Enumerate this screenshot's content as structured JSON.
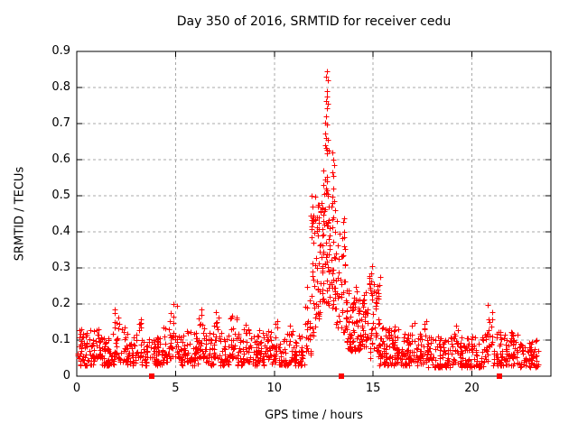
{
  "window": {
    "background": "#ffffff"
  },
  "chart_data": {
    "type": "scatter",
    "title": "Day 350 of 2016, SRMTID for receiver cedu",
    "xlabel": "GPS time / hours",
    "ylabel": "SRMTID / TECUs",
    "xlim": [
      0,
      24
    ],
    "ylim": [
      0,
      0.9
    ],
    "xticks": {
      "values": [
        0,
        5,
        10,
        15,
        20
      ],
      "labels": [
        "0",
        "5",
        "10",
        "15",
        "20"
      ]
    },
    "yticks": {
      "values": [
        0,
        0.1,
        0.2,
        0.3,
        0.4,
        0.5,
        0.6,
        0.7,
        0.8,
        0.9
      ],
      "labels": [
        "0",
        "0.1",
        "0.2",
        "0.3",
        "0.4",
        "0.5",
        "0.6",
        "0.7",
        "0.8",
        "0.9"
      ]
    },
    "grid": {
      "show": true,
      "style": "dashed",
      "color": "#a8a8a8"
    },
    "border_color": "#000000",
    "text_color": "#000000",
    "background": "#ffffff",
    "series": [
      {
        "name": "srmtid",
        "marker": "plus",
        "color": "#ff0000",
        "marker_size_px": 7,
        "representation": "density-envelope",
        "segments_note": "each segment = [hour_start, hour_end, y_min, y_max, point_count], values in TECUs read from gridlines",
        "segments": [
          [
            0.0,
            1.0,
            0.03,
            0.13,
            70
          ],
          [
            1.0,
            1.3,
            0.05,
            0.175,
            24
          ],
          [
            1.3,
            1.9,
            0.03,
            0.12,
            44
          ],
          [
            1.9,
            2.15,
            0.05,
            0.19,
            20
          ],
          [
            2.15,
            2.55,
            0.04,
            0.15,
            26
          ],
          [
            2.55,
            3.0,
            0.03,
            0.11,
            32
          ],
          [
            3.0,
            3.25,
            0.05,
            0.16,
            18
          ],
          [
            3.25,
            4.4,
            0.03,
            0.11,
            80
          ],
          [
            4.4,
            4.62,
            0.04,
            0.14,
            15
          ],
          [
            4.62,
            5.15,
            0.05,
            0.21,
            38
          ],
          [
            5.15,
            5.5,
            0.03,
            0.12,
            24
          ],
          [
            5.5,
            5.78,
            0.04,
            0.15,
            18
          ],
          [
            5.78,
            6.15,
            0.03,
            0.12,
            26
          ],
          [
            6.15,
            6.5,
            0.05,
            0.21,
            28
          ],
          [
            6.5,
            6.9,
            0.03,
            0.12,
            28
          ],
          [
            6.9,
            7.2,
            0.05,
            0.18,
            22
          ],
          [
            7.2,
            7.75,
            0.03,
            0.12,
            38
          ],
          [
            7.75,
            8.1,
            0.05,
            0.17,
            25
          ],
          [
            8.1,
            8.45,
            0.03,
            0.12,
            24
          ],
          [
            8.45,
            8.75,
            0.04,
            0.16,
            20
          ],
          [
            8.75,
            9.15,
            0.03,
            0.12,
            28
          ],
          [
            9.15,
            9.45,
            0.04,
            0.145,
            20
          ],
          [
            9.45,
            9.9,
            0.03,
            0.125,
            30
          ],
          [
            9.9,
            10.2,
            0.04,
            0.155,
            20
          ],
          [
            10.2,
            10.75,
            0.03,
            0.125,
            38
          ],
          [
            10.75,
            11.05,
            0.04,
            0.14,
            20
          ],
          [
            11.05,
            11.55,
            0.03,
            0.12,
            32
          ],
          [
            11.55,
            11.85,
            0.06,
            0.25,
            22
          ],
          [
            11.85,
            12.1,
            0.1,
            0.5,
            28
          ],
          [
            12.1,
            12.35,
            0.15,
            0.48,
            28
          ],
          [
            12.35,
            12.75,
            0.2,
            0.56,
            52
          ],
          [
            12.75,
            13.1,
            0.18,
            0.5,
            42
          ],
          [
            13.1,
            13.6,
            0.12,
            0.45,
            38
          ],
          [
            13.6,
            14.4,
            0.07,
            0.25,
            85
          ],
          [
            14.4,
            14.75,
            0.08,
            0.24,
            35
          ],
          [
            14.75,
            15.3,
            0.05,
            0.28,
            48
          ],
          [
            15.3,
            15.85,
            0.03,
            0.15,
            52
          ],
          [
            15.85,
            16.3,
            0.03,
            0.14,
            40
          ],
          [
            16.3,
            16.85,
            0.03,
            0.12,
            42
          ],
          [
            16.85,
            17.15,
            0.04,
            0.155,
            20
          ],
          [
            17.15,
            17.5,
            0.03,
            0.12,
            25
          ],
          [
            17.5,
            17.75,
            0.04,
            0.165,
            18
          ],
          [
            17.75,
            19.05,
            0.025,
            0.11,
            85
          ],
          [
            19.05,
            19.3,
            0.04,
            0.14,
            18
          ],
          [
            19.3,
            20.6,
            0.025,
            0.11,
            85
          ],
          [
            20.6,
            20.8,
            0.04,
            0.13,
            15
          ],
          [
            20.8,
            21.05,
            0.08,
            0.2,
            18
          ],
          [
            21.05,
            21.7,
            0.03,
            0.125,
            40
          ],
          [
            21.7,
            22.05,
            0.03,
            0.13,
            24
          ],
          [
            22.05,
            22.45,
            0.03,
            0.12,
            26
          ],
          [
            22.45,
            23.4,
            0.025,
            0.1,
            58
          ]
        ],
        "peak_points": [
          [
            12.68,
            0.845
          ],
          [
            12.62,
            0.831
          ],
          [
            12.7,
            0.82
          ],
          [
            12.65,
            0.791
          ],
          [
            12.67,
            0.776
          ],
          [
            12.6,
            0.762
          ],
          [
            12.71,
            0.756
          ],
          [
            12.64,
            0.742
          ],
          [
            12.63,
            0.721
          ],
          [
            12.59,
            0.703
          ],
          [
            12.68,
            0.697
          ],
          [
            12.55,
            0.672
          ],
          [
            12.63,
            0.661
          ],
          [
            12.7,
            0.655
          ],
          [
            12.58,
            0.641
          ],
          [
            12.6,
            0.633
          ],
          [
            12.66,
            0.628
          ],
          [
            12.74,
            0.624
          ],
          [
            12.65,
            0.617
          ],
          [
            12.95,
            0.621
          ],
          [
            13.0,
            0.601
          ],
          [
            13.04,
            0.586
          ],
          [
            12.92,
            0.566
          ],
          [
            12.98,
            0.556
          ],
          [
            12.5,
            0.571
          ],
          [
            12.55,
            0.546
          ],
          [
            12.48,
            0.531
          ],
          [
            12.6,
            0.521
          ],
          [
            12.66,
            0.514
          ],
          [
            12.52,
            0.506
          ],
          [
            12.7,
            0.501
          ],
          [
            13.0,
            0.519
          ],
          [
            12.4,
            0.481
          ],
          [
            12.45,
            0.466
          ],
          [
            12.9,
            0.471
          ],
          [
            13.06,
            0.461
          ],
          [
            12.35,
            0.456
          ],
          [
            11.9,
            0.499
          ],
          [
            11.95,
            0.471
          ],
          [
            11.86,
            0.446
          ],
          [
            12.05,
            0.436
          ],
          [
            11.88,
            0.416
          ],
          [
            12.2,
            0.469
          ],
          [
            12.25,
            0.441
          ],
          [
            13.48,
            0.428
          ],
          [
            13.52,
            0.401
          ],
          [
            13.45,
            0.382
          ],
          [
            13.55,
            0.361
          ],
          [
            13.5,
            0.336
          ],
          [
            14.95,
            0.306
          ],
          [
            14.88,
            0.286
          ],
          [
            15.35,
            0.276
          ],
          [
            15.3,
            0.252
          ]
        ]
      },
      {
        "name": "zero-flags",
        "marker": "filled-square",
        "color": "#ff0000",
        "marker_size_px": 6,
        "points": [
          [
            3.79,
            0
          ],
          [
            13.4,
            0
          ],
          [
            21.4,
            0
          ]
        ]
      }
    ]
  }
}
